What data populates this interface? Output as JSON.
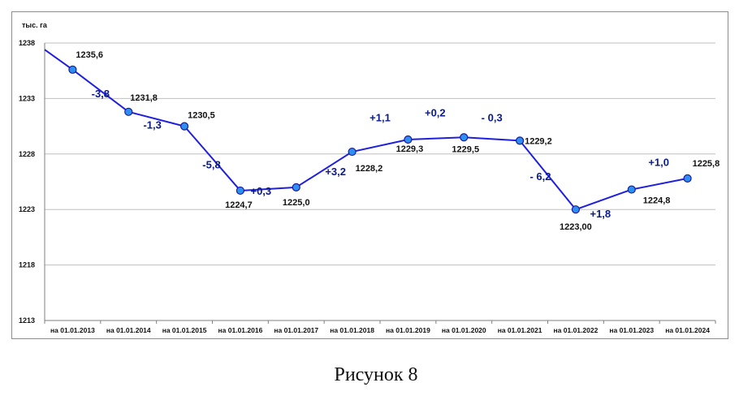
{
  "caption": "Рисунок 8",
  "chart_data": {
    "type": "line",
    "ylabel": "тыс. га",
    "ylim": [
      1213,
      1238
    ],
    "yticks": [
      1238,
      1233,
      1228,
      1223,
      1218,
      1213
    ],
    "grid": "horizontal",
    "line_color": "#1f1fe0",
    "marker_color": "#2e8ff0",
    "annotation_color": "#0a1a8a",
    "categories": [
      "на 01.01.2013",
      "на 01.01.2014",
      "на 01.01.2015",
      "на 01.01.2016",
      "на 01.01.2017",
      "на 01.01.2018",
      "на 01.01.2019",
      "на 01.01.2020",
      "на 01.01.2021",
      "на 01.01.2022",
      "на 01.01.2023",
      "на 01.01.2024"
    ],
    "start_point": 1237.4,
    "values": [
      1235.6,
      1231.8,
      1230.5,
      1224.7,
      1225.0,
      1228.2,
      1229.3,
      1229.5,
      1229.2,
      1223.0,
      1224.8,
      1225.8
    ],
    "value_labels": [
      "1235,6",
      "1231,8",
      "1230,5",
      "1224,7",
      "1225,0",
      "1228,2",
      "1229,3",
      "1229,5",
      "1229,2",
      "1223,00",
      "1224,8",
      "1225,8"
    ],
    "change_labels": [
      "-3,8",
      "-1,3",
      "-5,8",
      "+0,3",
      "+3,2",
      "+1,1",
      "+0,2",
      "- 0,3",
      "- 6,2",
      "+1,8",
      "+1,0"
    ]
  }
}
